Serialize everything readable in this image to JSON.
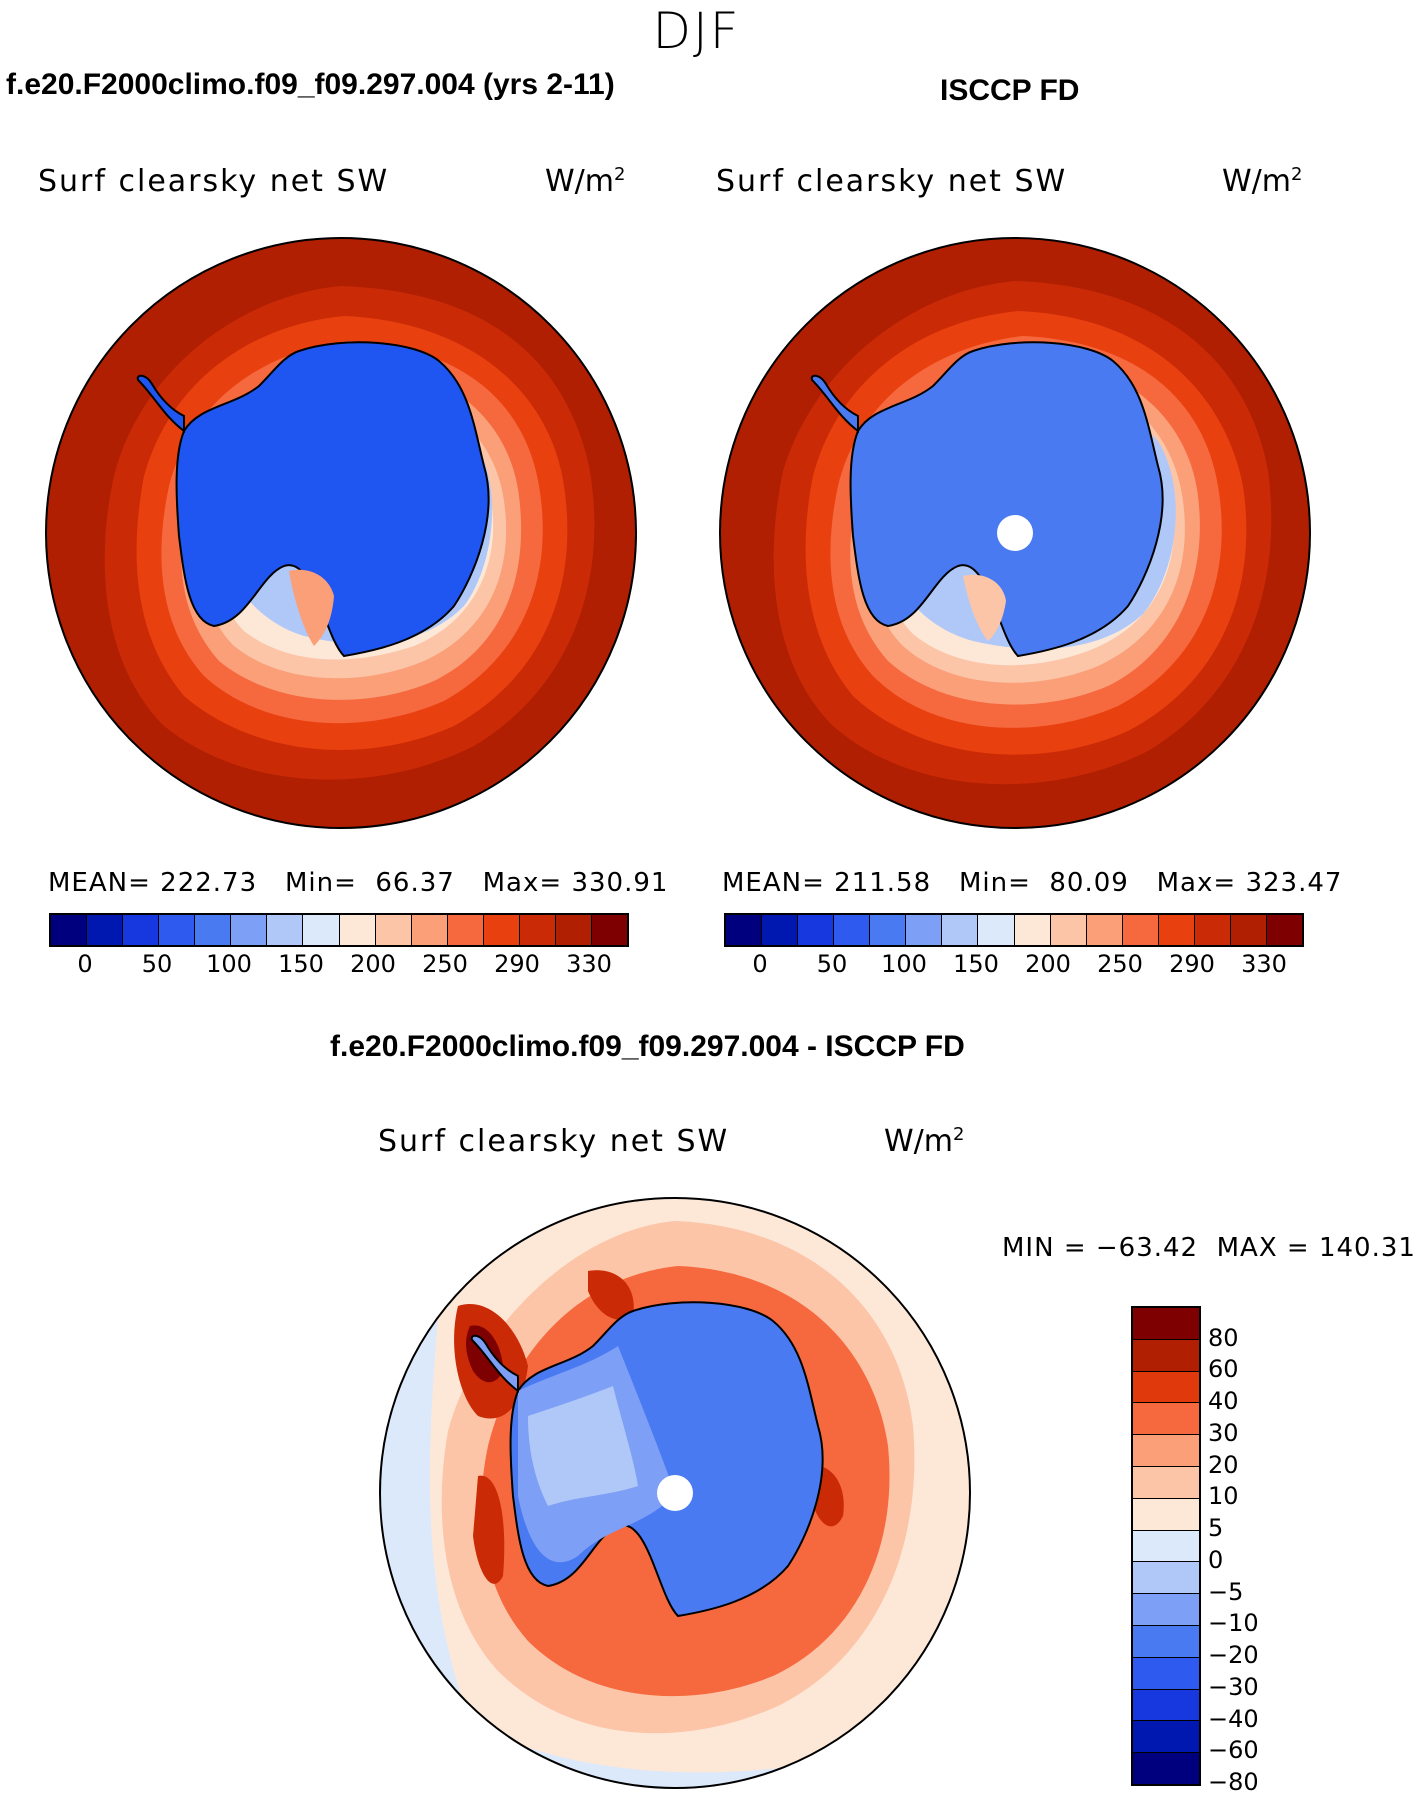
{
  "suptitle": "DJF",
  "panels": {
    "model": {
      "title": "f.e20.F2000climo.f09_f09.297.004 (yrs 2-11)",
      "varname": "Surf clearsky net SW",
      "units": "W/m",
      "units_exp": "2",
      "stats": {
        "mean_label": "MEAN=",
        "mean": "222.73",
        "min_label": "Min=",
        "min": "66.37",
        "max_label": "Max=",
        "max": "330.91"
      }
    },
    "obs": {
      "title": "ISCCP FD",
      "varname": "Surf clearsky net SW",
      "units": "W/m",
      "units_exp": "2",
      "stats": {
        "mean_label": "MEAN=",
        "mean": "211.58",
        "min_label": "Min=",
        "min": "80.09",
        "max_label": "Max=",
        "max": "323.47"
      }
    },
    "diff": {
      "title": "f.e20.F2000climo.f09_f09.297.004 - ISCCP FD",
      "varname": "Surf clearsky net SW",
      "units": "W/m",
      "units_exp": "2",
      "minmax": "MIN = −63.42  MAX = 140.31"
    }
  },
  "colorbar_abs": {
    "colors": [
      "#00007f",
      "#0018b0",
      "#1638de",
      "#2e5af0",
      "#4a7af2",
      "#7d9ff5",
      "#b0c8f8",
      "#dbe9fb",
      "#fde8d8",
      "#fcc5a8",
      "#fa9f78",
      "#f6683e",
      "#e8400f",
      "#cb2a06",
      "#b01f02",
      "#7f0000"
    ],
    "labels": [
      "0",
      "50",
      "100",
      "150",
      "200",
      "250",
      "290",
      "330"
    ]
  },
  "colorbar_diff": {
    "colors": [
      "#7f0000",
      "#b01f02",
      "#e03a0c",
      "#f6683e",
      "#fa9f78",
      "#fcc5a8",
      "#fde8d8",
      "#dbe9fb",
      "#b0c8f8",
      "#7d9ff5",
      "#4a7af2",
      "#2e5af0",
      "#1638de",
      "#0018b0",
      "#00007f"
    ],
    "labels": [
      "80",
      "60",
      "40",
      "30",
      "20",
      "10",
      "5",
      "0",
      "−5",
      "−10",
      "−20",
      "−30",
      "−40",
      "−60",
      "−80"
    ]
  },
  "map_colors": {
    "abs_outer": "#b01f02",
    "abs_ring1": "#cb2a06",
    "abs_ring2": "#e8400f",
    "abs_ring3": "#f6683e",
    "abs_ring4": "#fa9f78",
    "abs_ring5": "#fcc5a8",
    "abs_ring6": "#fde8d8",
    "abs_ring7": "#b0c8f8",
    "model_land": "#1f55f0",
    "obs_land": "#4a7af2",
    "diff_bg": "#fde8d8",
    "diff_red1": "#fcc5a8",
    "diff_red2": "#f6683e",
    "diff_red3": "#cb2a06",
    "diff_red4": "#7f0000",
    "diff_land": "#4a7af2",
    "diff_land2": "#7d9ff5",
    "diff_land3": "#b0c8f8",
    "diff_edge": "#dbe9fb"
  }
}
